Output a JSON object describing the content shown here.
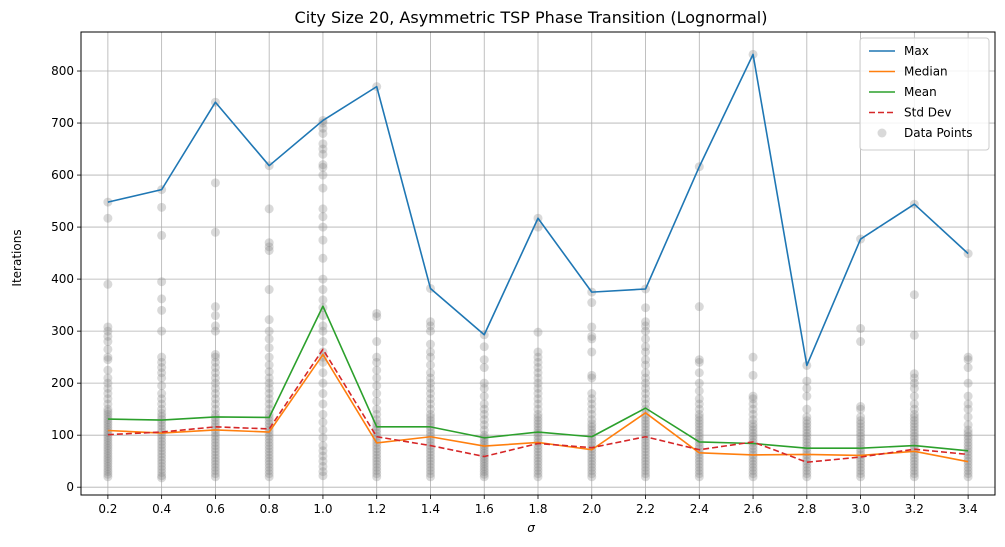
{
  "chart_data": {
    "type": "line",
    "title": "City Size 20, Asymmetric TSP Phase Transition (Lognormal)",
    "xlabel": "σ",
    "ylabel": "Iterations",
    "xlim": [
      0.1,
      3.5
    ],
    "ylim": [
      -15,
      875
    ],
    "x_ticks": [
      0.2,
      0.4,
      0.6,
      0.8,
      1.0,
      1.2,
      1.4,
      1.6,
      1.8,
      2.0,
      2.2,
      2.4,
      2.6,
      2.8,
      3.0,
      3.2,
      3.4
    ],
    "x_tick_labels": [
      "0.2",
      "0.4",
      "0.6",
      "0.8",
      "1.0",
      "1.2",
      "1.4",
      "1.6",
      "1.8",
      "2.0",
      "2.2",
      "2.4",
      "2.6",
      "2.8",
      "3.0",
      "3.2",
      "3.4"
    ],
    "y_ticks": [
      0,
      100,
      200,
      300,
      400,
      500,
      600,
      700,
      800
    ],
    "y_tick_labels": [
      "0",
      "100",
      "200",
      "300",
      "400",
      "500",
      "600",
      "700",
      "800"
    ],
    "grid": true,
    "legend_position": "top-right",
    "x": [
      0.2,
      0.4,
      0.6,
      0.8,
      1.0,
      1.2,
      1.4,
      1.6,
      1.8,
      2.0,
      2.2,
      2.4,
      2.6,
      2.8,
      3.0,
      3.2,
      3.4
    ],
    "series": [
      {
        "name": "Max",
        "color": "#1f77b4",
        "style": "solid",
        "values": [
          548,
          572,
          740,
          618,
          705,
          770,
          382,
          293,
          517,
          375,
          381,
          616,
          832,
          234,
          477,
          544,
          449
        ]
      },
      {
        "name": "Median",
        "color": "#ff7f0e",
        "style": "solid",
        "values": [
          109,
          104,
          110,
          106,
          255,
          85,
          97,
          79,
          86,
          72,
          143,
          66,
          62,
          63,
          61,
          69,
          49
        ]
      },
      {
        "name": "Mean",
        "color": "#2ca02c",
        "style": "solid",
        "values": [
          131,
          129,
          135,
          134,
          348,
          116,
          116,
          95,
          106,
          97,
          152,
          87,
          84,
          75,
          75,
          80,
          70
        ]
      },
      {
        "name": "Std Dev",
        "color": "#d62728",
        "style": "dashed",
        "values": [
          101,
          106,
          116,
          112,
          265,
          97,
          80,
          59,
          84,
          76,
          97,
          72,
          87,
          48,
          58,
          73,
          63
        ]
      }
    ],
    "scatter": {
      "name": "Data Points",
      "color": "#808080",
      "points": [
        [
          0.2,
          [
            20,
            25,
            30,
            35,
            40,
            45,
            50,
            55,
            60,
            65,
            70,
            75,
            80,
            85,
            90,
            95,
            100,
            105,
            110,
            115,
            120,
            125,
            130,
            135,
            140,
            145,
            150,
            160,
            170,
            180,
            190,
            200,
            210,
            225,
            245,
            250,
            265,
            280,
            290,
            300,
            308,
            390,
            517,
            548
          ]
        ],
        [
          0.4,
          [
            18,
            22,
            28,
            34,
            40,
            46,
            52,
            58,
            64,
            70,
            76,
            82,
            88,
            94,
            100,
            106,
            112,
            118,
            124,
            130,
            136,
            142,
            150,
            160,
            170,
            180,
            195,
            210,
            220,
            230,
            240,
            250,
            300,
            340,
            362,
            395,
            484,
            538,
            572
          ]
        ],
        [
          0.6,
          [
            20,
            26,
            32,
            38,
            44,
            50,
            56,
            62,
            68,
            74,
            80,
            86,
            92,
            98,
            104,
            110,
            116,
            122,
            128,
            134,
            140,
            150,
            160,
            170,
            180,
            190,
            200,
            210,
            220,
            230,
            240,
            250,
            255,
            300,
            310,
            330,
            347,
            490,
            585,
            740
          ]
        ],
        [
          0.8,
          [
            20,
            26,
            32,
            38,
            44,
            50,
            56,
            62,
            68,
            74,
            80,
            86,
            92,
            98,
            104,
            110,
            116,
            122,
            128,
            134,
            140,
            150,
            160,
            170,
            180,
            190,
            200,
            210,
            222,
            235,
            250,
            268,
            285,
            300,
            322,
            380,
            455,
            462,
            470,
            535,
            618
          ]
        ],
        [
          1.0,
          [
            22,
            30,
            40,
            50,
            60,
            70,
            80,
            95,
            110,
            125,
            140,
            160,
            180,
            200,
            220,
            240,
            250,
            260,
            280,
            300,
            310,
            330,
            345,
            360,
            380,
            400,
            440,
            475,
            500,
            520,
            535,
            575,
            600,
            615,
            620,
            640,
            650,
            660,
            680,
            690,
            700,
            705
          ]
        ],
        [
          1.2,
          [
            20,
            26,
            32,
            38,
            44,
            50,
            56,
            62,
            68,
            74,
            80,
            86,
            92,
            98,
            104,
            110,
            116,
            122,
            130,
            140,
            150,
            165,
            180,
            195,
            210,
            225,
            240,
            250,
            280,
            328,
            334,
            770
          ]
        ],
        [
          1.4,
          [
            20,
            26,
            32,
            38,
            44,
            50,
            56,
            62,
            68,
            74,
            80,
            86,
            92,
            98,
            104,
            110,
            116,
            122,
            128,
            134,
            140,
            150,
            160,
            170,
            180,
            190,
            200,
            210,
            220,
            235,
            250,
            260,
            275,
            300,
            310,
            318,
            382
          ]
        ],
        [
          1.6,
          [
            20,
            25,
            30,
            35,
            40,
            45,
            50,
            55,
            60,
            65,
            70,
            75,
            80,
            85,
            90,
            95,
            100,
            110,
            120,
            130,
            140,
            150,
            160,
            175,
            190,
            200,
            230,
            245,
            270,
            293
          ]
        ],
        [
          1.8,
          [
            20,
            26,
            32,
            38,
            44,
            50,
            56,
            62,
            68,
            74,
            80,
            86,
            92,
            98,
            104,
            110,
            116,
            122,
            128,
            134,
            140,
            150,
            160,
            170,
            180,
            190,
            200,
            210,
            220,
            230,
            240,
            250,
            260,
            298,
            500,
            517
          ]
        ],
        [
          2.0,
          [
            20,
            26,
            32,
            38,
            44,
            50,
            56,
            62,
            68,
            74,
            80,
            86,
            92,
            98,
            104,
            110,
            116,
            122,
            130,
            140,
            150,
            160,
            170,
            180,
            210,
            215,
            260,
            285,
            290,
            308,
            355,
            375
          ]
        ],
        [
          2.2,
          [
            20,
            26,
            32,
            38,
            44,
            50,
            56,
            62,
            68,
            74,
            80,
            86,
            92,
            98,
            104,
            110,
            116,
            122,
            128,
            134,
            140,
            150,
            160,
            170,
            180,
            190,
            200,
            210,
            220,
            235,
            245,
            260,
            270,
            285,
            300,
            310,
            318,
            345,
            381
          ]
        ],
        [
          2.4,
          [
            20,
            26,
            32,
            38,
            44,
            50,
            56,
            62,
            68,
            74,
            80,
            86,
            92,
            98,
            104,
            110,
            116,
            122,
            128,
            134,
            140,
            150,
            160,
            170,
            185,
            200,
            220,
            240,
            245,
            347,
            616
          ]
        ],
        [
          2.6,
          [
            20,
            26,
            32,
            38,
            44,
            50,
            56,
            62,
            68,
            74,
            80,
            86,
            92,
            98,
            104,
            110,
            116,
            122,
            130,
            140,
            150,
            160,
            170,
            175,
            215,
            250,
            832
          ]
        ],
        [
          2.8,
          [
            20,
            26,
            32,
            38,
            44,
            50,
            56,
            62,
            68,
            74,
            80,
            86,
            92,
            98,
            104,
            110,
            116,
            122,
            128,
            135,
            150,
            175,
            190,
            204,
            234
          ]
        ],
        [
          3.0,
          [
            20,
            26,
            32,
            38,
            44,
            50,
            56,
            62,
            68,
            74,
            80,
            86,
            92,
            98,
            104,
            110,
            116,
            122,
            128,
            135,
            150,
            155,
            280,
            305,
            477
          ]
        ],
        [
          3.2,
          [
            20,
            26,
            32,
            38,
            44,
            50,
            56,
            62,
            68,
            74,
            80,
            86,
            92,
            98,
            104,
            110,
            116,
            122,
            128,
            134,
            140,
            150,
            160,
            175,
            190,
            200,
            210,
            218,
            292,
            370,
            544
          ]
        ],
        [
          3.4,
          [
            20,
            26,
            32,
            38,
            44,
            50,
            56,
            62,
            68,
            74,
            80,
            86,
            92,
            98,
            104,
            110,
            120,
            135,
            150,
            160,
            175,
            200,
            230,
            245,
            250,
            449
          ]
        ]
      ]
    }
  }
}
